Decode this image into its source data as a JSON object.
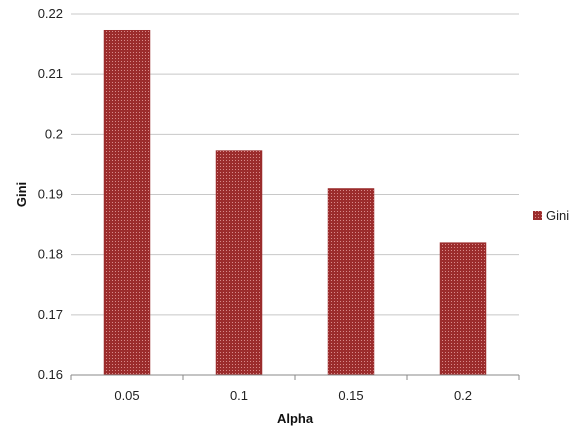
{
  "chart_data": {
    "type": "bar",
    "categories": [
      "0.05",
      "0.1",
      "0.15",
      "0.2"
    ],
    "series": [
      {
        "name": "Gini",
        "values": [
          0.2173,
          0.1973,
          0.191,
          0.182
        ]
      }
    ],
    "xlabel": "Alpha",
    "ylabel": "Gini",
    "ylim": [
      0.16,
      0.22
    ],
    "yticks": [
      "0.16",
      "0.17",
      "0.18",
      "0.19",
      "0.2",
      "0.21",
      "0.22"
    ],
    "grid": true,
    "legend_position": "right",
    "colors": {
      "bar": "#9b2c2c",
      "bar_dots": "#d88a8a",
      "grid": "#c8c8c8",
      "axis": "#888888"
    }
  }
}
